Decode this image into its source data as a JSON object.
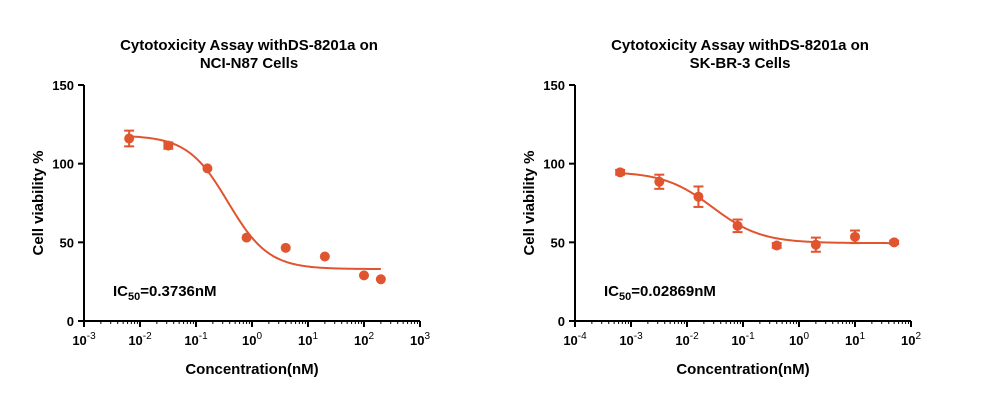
{
  "colors": {
    "series": "#E0552F",
    "axis": "#000000",
    "background": "#ffffff"
  },
  "chart_data": [
    {
      "type": "scatter",
      "title": [
        "Cytotoxicity Assay withDS-8201a on",
        "NCI-N87 Cells"
      ],
      "xlabel": "Concentration(nM)",
      "ylabel": "Cell viability %",
      "xscale": "log",
      "xlim_exp": [
        -3,
        3
      ],
      "ylim": [
        0,
        150
      ],
      "yticks": [
        "0",
        "50",
        "100",
        "150"
      ],
      "xticks": [
        {
          "base": "10",
          "exp": "-3"
        },
        {
          "base": "10",
          "exp": "-2"
        },
        {
          "base": "10",
          "exp": "-1"
        },
        {
          "base": "10",
          "exp": "0"
        },
        {
          "base": "10",
          "exp": "1"
        },
        {
          "base": "10",
          "exp": "2"
        },
        {
          "base": "10",
          "exp": "3"
        }
      ],
      "points": [
        {
          "x": 0.0064,
          "y": 116,
          "err": 5
        },
        {
          "x": 0.032,
          "y": 111.5,
          "err": 2
        },
        {
          "x": 0.16,
          "y": 97,
          "err": 0
        },
        {
          "x": 0.8,
          "y": 53,
          "err": 0
        },
        {
          "x": 4,
          "y": 46.5,
          "err": 0
        },
        {
          "x": 20,
          "y": 41,
          "err": 0
        },
        {
          "x": 100,
          "y": 29,
          "err": 0
        },
        {
          "x": 200,
          "y": 26.5,
          "err": 0
        }
      ],
      "fit": {
        "top": 118,
        "bottom": 33,
        "ic50": 0.3736,
        "hill": 1.2,
        "x_from": 0.0064,
        "x_to": 200
      },
      "annotation": {
        "prefix": "IC",
        "sub": "50",
        "text": "=0.3736nM"
      }
    },
    {
      "type": "scatter",
      "title": [
        "Cytotoxicity Assay withDS-8201a on",
        "SK-BR-3 Cells"
      ],
      "xlabel": "Concentration(nM)",
      "ylabel": "Cell viability %",
      "xscale": "log",
      "xlim_exp": [
        -4,
        2
      ],
      "ylim": [
        0,
        150
      ],
      "yticks": [
        "0",
        "50",
        "100",
        "150"
      ],
      "xticks": [
        {
          "base": "10",
          "exp": "-4"
        },
        {
          "base": "10",
          "exp": "-3"
        },
        {
          "base": "10",
          "exp": "-2"
        },
        {
          "base": "10",
          "exp": "-1"
        },
        {
          "base": "10",
          "exp": "0"
        },
        {
          "base": "10",
          "exp": "1"
        },
        {
          "base": "10",
          "exp": "2"
        }
      ],
      "points": [
        {
          "x": 0.00064,
          "y": 94.5,
          "err": 1.5
        },
        {
          "x": 0.0032,
          "y": 88.5,
          "err": 4.5
        },
        {
          "x": 0.016,
          "y": 79,
          "err": 6.5
        },
        {
          "x": 0.08,
          "y": 60.5,
          "err": 4
        },
        {
          "x": 0.4,
          "y": 48,
          "err": 1.5
        },
        {
          "x": 2,
          "y": 48.5,
          "err": 4.5
        },
        {
          "x": 10,
          "y": 53.5,
          "err": 4
        },
        {
          "x": 50,
          "y": 50,
          "err": 1
        }
      ],
      "fit": {
        "top": 95,
        "bottom": 49.5,
        "ic50": 0.02869,
        "hill": 1.0,
        "x_from": 0.00064,
        "x_to": 50
      },
      "annotation": {
        "prefix": "IC",
        "sub": "50",
        "text": "=0.02869nM"
      }
    }
  ]
}
